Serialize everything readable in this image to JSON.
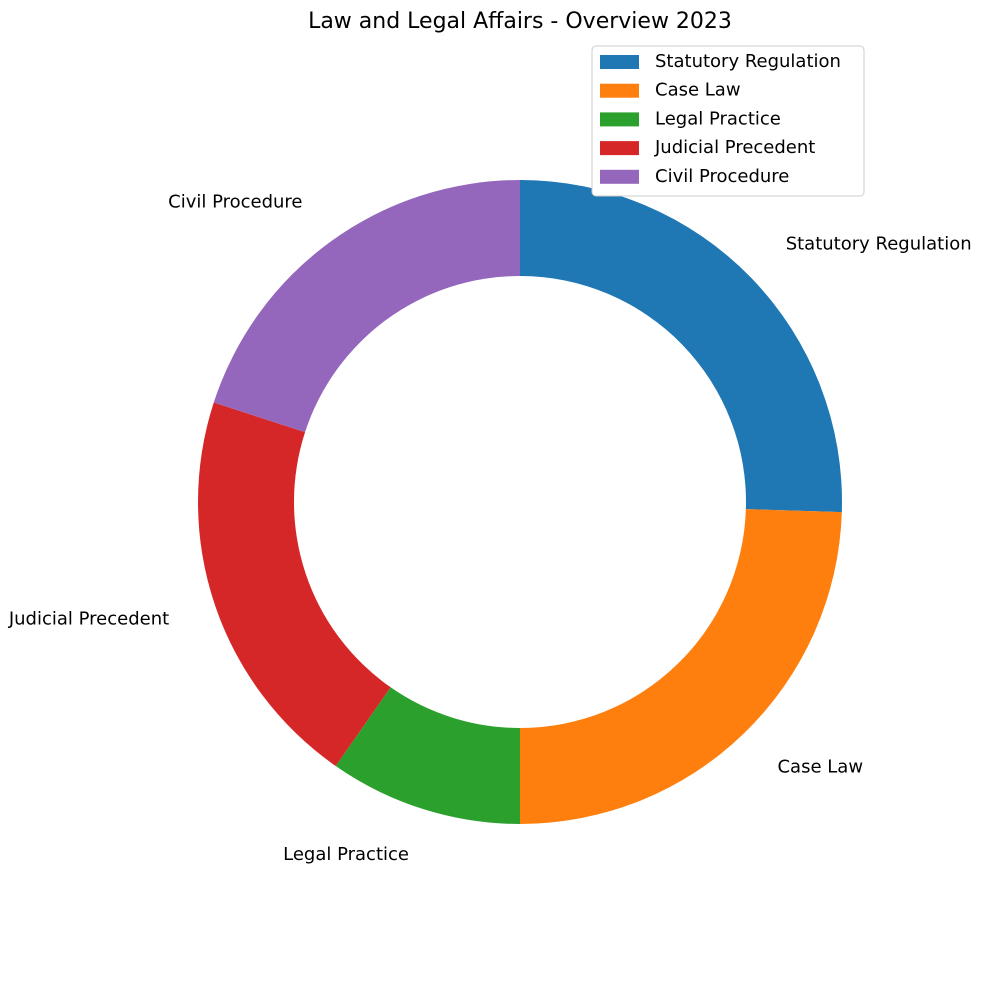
{
  "chart_data": {
    "type": "pie",
    "title": "Law and Legal Affairs - Overview 2023",
    "donut": true,
    "start_angle_deg": 90,
    "direction": "clockwise",
    "categories": [
      "Statutory Regulation",
      "Case Law",
      "Legal Practice",
      "Judicial Precedent",
      "Civil Procedure"
    ],
    "values": [
      25.5,
      24.5,
      9.7,
      20.3,
      20.0
    ],
    "colors": [
      "#1f77b4",
      "#ff7f0e",
      "#2ca02c",
      "#d62728",
      "#9467bd"
    ],
    "legend": {
      "placement": "top-right",
      "entries": [
        "Statutory Regulation",
        "Case Law",
        "Legal Practice",
        "Judicial Precedent",
        "Civil Procedure"
      ]
    }
  }
}
